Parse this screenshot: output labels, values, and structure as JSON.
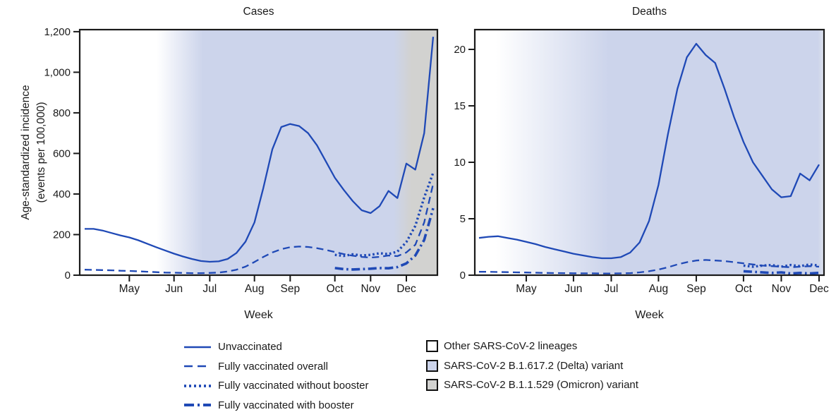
{
  "figure": {
    "y_axis_label_line1": "Age-standardized incidence",
    "y_axis_label_line2": "(events per 100,000)",
    "x_axis_label": "Week"
  },
  "colors": {
    "line": "#1f49b6",
    "other_lineages_fill": "#ffffff",
    "delta_fill": "#ccd4eb",
    "omicron_fill": "#d2d2d0",
    "axis": "#1a1a1a"
  },
  "legend": {
    "line_items": [
      {
        "label": "Unvaccinated",
        "line_style": "solid"
      },
      {
        "label": "Fully vaccinated overall",
        "line_style": "dashed"
      },
      {
        "label": "Fully vaccinated without booster",
        "line_style": "dotted"
      },
      {
        "label": "Fully vaccinated with booster",
        "line_style": "dash-dot"
      }
    ],
    "fill_items": [
      {
        "label": "Other SARS-CoV-2 lineages",
        "color": "#ffffff"
      },
      {
        "label": "SARS-CoV-2 B.1.617.2 (Delta) variant",
        "color": "#ccd4eb"
      },
      {
        "label": "SARS-CoV-2 B.1.1.529 (Omicron) variant",
        "color": "#d2d2d0"
      }
    ]
  },
  "chart_data": [
    {
      "type": "line",
      "title": "Cases",
      "xlabel": "Week",
      "ylabel": "Age-standardized incidence (events per 100,000)",
      "weeks_total": 40,
      "ylim": [
        0,
        1210
      ],
      "y_ticks": [
        {
          "value": 0,
          "label": "0"
        },
        {
          "value": 200,
          "label": "200"
        },
        {
          "value": 400,
          "label": "400"
        },
        {
          "value": 600,
          "label": "600"
        },
        {
          "value": 800,
          "label": "800"
        },
        {
          "value": 1000,
          "label": "1,000"
        },
        {
          "value": 1200,
          "label": "1,200"
        }
      ],
      "x_ticks": [
        {
          "week": 5,
          "label": "May"
        },
        {
          "week": 10,
          "label": "Jun"
        },
        {
          "week": 14,
          "label": "Jul"
        },
        {
          "week": 19,
          "label": "Aug"
        },
        {
          "week": 23,
          "label": "Sep"
        },
        {
          "week": 28,
          "label": "Oct"
        },
        {
          "week": 32,
          "label": "Nov"
        },
        {
          "week": 36,
          "label": "Dec"
        }
      ],
      "variant_periods": [
        {
          "label": "Other SARS-CoV-2 lineages",
          "color": "#ffffff",
          "from_week": 0,
          "to_week": 8
        },
        {
          "label": "SARS-CoV-2 B.1.617.2 (Delta) variant",
          "color": "#ccd4eb",
          "from_week": 13,
          "to_week": 34
        },
        {
          "label": "SARS-CoV-2 B.1.1.529 (Omicron) variant",
          "color": "#d2d2d0",
          "from_week": 37,
          "to_week": 39
        }
      ],
      "background_gradient_stops": [
        {
          "offset": 0,
          "color": "#ffffff"
        },
        {
          "offset": 0.215,
          "color": "#ffffff"
        },
        {
          "offset": 0.345,
          "color": "#ccd4eb"
        },
        {
          "offset": 0.878,
          "color": "#ccd4eb"
        },
        {
          "offset": 0.928,
          "color": "#d2d2d0"
        },
        {
          "offset": 1,
          "color": "#d2d2d0"
        }
      ],
      "series": [
        {
          "name": "Unvaccinated",
          "line_style": "solid",
          "start_week": 0,
          "values": [
            228,
            228,
            220,
            208,
            196,
            186,
            172,
            155,
            138,
            122,
            106,
            92,
            80,
            70,
            66,
            68,
            80,
            110,
            165,
            260,
            430,
            620,
            730,
            745,
            735,
            700,
            640,
            560,
            480,
            420,
            365,
            320,
            306,
            340,
            415,
            380,
            550,
            520,
            700,
            1175
          ]
        },
        {
          "name": "Fully vaccinated overall",
          "line_style": "dashed",
          "start_week": 0,
          "values": [
            27,
            26,
            25,
            24,
            22,
            21,
            19,
            17,
            15,
            13,
            12,
            11,
            10,
            10,
            11,
            13,
            18,
            27,
            42,
            65,
            90,
            112,
            128,
            138,
            141,
            139,
            133,
            124,
            114,
            104,
            96,
            90,
            87,
            90,
            97,
            94,
            112,
            150,
            260,
            450
          ]
        },
        {
          "name": "Fully vaccinated without booster",
          "line_style": "dotted",
          "start_week": 28,
          "values": [
            100,
            95,
            103,
            97,
            100,
            108,
            104,
            116,
            163,
            243,
            383,
            505
          ]
        },
        {
          "name": "Fully vaccinated with booster",
          "line_style": "dash-dot",
          "start_week": 28,
          "values": [
            35,
            30,
            28,
            30,
            32,
            35,
            34,
            40,
            58,
            97,
            174,
            330
          ]
        }
      ]
    },
    {
      "type": "line",
      "title": "Deaths",
      "xlabel": "Week",
      "ylabel": "Age-standardized incidence (events per 100,000)",
      "weeks_total": 37,
      "ylim": [
        0,
        21.75
      ],
      "y_ticks": [
        {
          "value": 0,
          "label": "0"
        },
        {
          "value": 5,
          "label": "5"
        },
        {
          "value": 10,
          "label": "10"
        },
        {
          "value": 15,
          "label": "15"
        },
        {
          "value": 20,
          "label": "20"
        }
      ],
      "x_ticks": [
        {
          "week": 5,
          "label": "May"
        },
        {
          "week": 10,
          "label": "Jun"
        },
        {
          "week": 14,
          "label": "Jul"
        },
        {
          "week": 19,
          "label": "Aug"
        },
        {
          "week": 23,
          "label": "Sep"
        },
        {
          "week": 28,
          "label": "Oct"
        },
        {
          "week": 32,
          "label": "Nov"
        },
        {
          "week": 36,
          "label": "Dec"
        }
      ],
      "variant_periods": [
        {
          "label": "Other SARS-CoV-2 lineages",
          "color": "#ffffff",
          "from_week": 0,
          "to_week": 7
        },
        {
          "label": "SARS-CoV-2 B.1.617.2 (Delta) variant",
          "color": "#ccd4eb",
          "from_week": 13,
          "to_week": 36
        }
      ],
      "background_gradient_stops": [
        {
          "offset": 0,
          "color": "#ffffff"
        },
        {
          "offset": 0.06,
          "color": "#ffffff"
        },
        {
          "offset": 0.385,
          "color": "#ccd4eb"
        },
        {
          "offset": 0.982,
          "color": "#ccd4eb"
        },
        {
          "offset": 1,
          "color": "#dde1ec"
        }
      ],
      "series": [
        {
          "name": "Unvaccinated",
          "line_style": "solid",
          "start_week": 0,
          "values": [
            3.3,
            3.4,
            3.45,
            3.3,
            3.15,
            2.95,
            2.75,
            2.5,
            2.3,
            2.1,
            1.9,
            1.75,
            1.6,
            1.5,
            1.5,
            1.6,
            2.0,
            2.9,
            4.8,
            8.0,
            12.5,
            16.5,
            19.3,
            20.5,
            19.5,
            18.8,
            16.5,
            14.0,
            11.8,
            10.0,
            8.8,
            7.6,
            6.9,
            7.0,
            9.0,
            8.4,
            9.8
          ]
        },
        {
          "name": "Fully vaccinated overall",
          "line_style": "dashed",
          "start_week": 0,
          "values": [
            0.3,
            0.3,
            0.28,
            0.27,
            0.25,
            0.24,
            0.22,
            0.2,
            0.19,
            0.18,
            0.17,
            0.16,
            0.16,
            0.15,
            0.15,
            0.16,
            0.18,
            0.25,
            0.35,
            0.5,
            0.7,
            0.95,
            1.15,
            1.3,
            1.35,
            1.3,
            1.25,
            1.15,
            1.05,
            0.95,
            0.85,
            0.8,
            0.75,
            0.7,
            0.75,
            0.8,
            0.75
          ]
        },
        {
          "name": "Fully vaccinated without booster",
          "line_style": "dotted",
          "start_week": 28,
          "values": [
            0.85,
            0.75,
            0.85,
            0.9,
            0.75,
            0.9,
            0.8,
            0.95,
            0.85
          ]
        },
        {
          "name": "Fully vaccinated with booster",
          "line_style": "dash-dot",
          "start_week": 28,
          "values": [
            0.35,
            0.3,
            0.25,
            0.2,
            0.25,
            0.15,
            0.2,
            0.15,
            0.2
          ]
        }
      ]
    }
  ]
}
